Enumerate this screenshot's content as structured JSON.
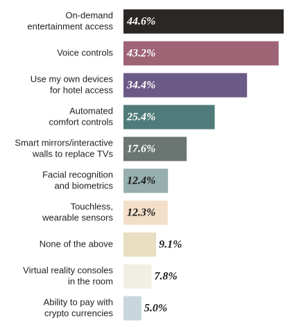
{
  "chart_data": {
    "type": "bar",
    "orientation": "horizontal",
    "categories": [
      [
        "On-demand",
        "entertainment access"
      ],
      [
        "Voice controls"
      ],
      [
        "Use my own devices",
        "for hotel access"
      ],
      [
        "Automated",
        "comfort controls"
      ],
      [
        "Smart mirrors/interactive",
        "walls to replace TVs"
      ],
      [
        "Facial recognition",
        "and biometrics"
      ],
      [
        "Touchless,",
        "wearable sensors"
      ],
      [
        "None of the above"
      ],
      [
        "Virtual reality consoles",
        "in the room"
      ],
      [
        "Ability to pay with",
        "crypto currencies"
      ]
    ],
    "values": [
      44.6,
      43.2,
      34.4,
      25.4,
      17.6,
      12.4,
      12.3,
      9.1,
      7.8,
      5.0
    ],
    "value_labels": [
      "44.6%",
      "43.2%",
      "34.4%",
      "25.4%",
      "17.6%",
      "12.4%",
      "12.3%",
      "9.1%",
      "7.8%",
      "5.0%"
    ],
    "colors": [
      "#2b2725",
      "#9e6476",
      "#6c5a86",
      "#4f7c7a",
      "#6b7572",
      "#96aeae",
      "#f3dfc9",
      "#e8dfc2",
      "#f1efe3",
      "#c9d6de"
    ]
  }
}
